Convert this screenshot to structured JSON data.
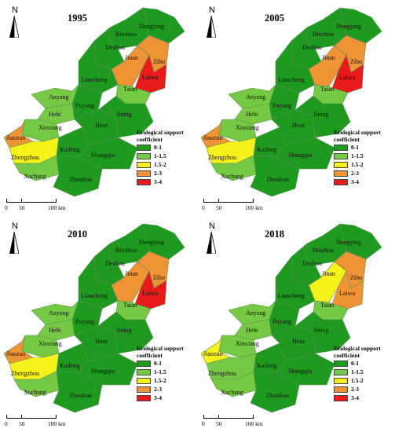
{
  "legend": {
    "title": "Ecological support coefficient",
    "classes": [
      {
        "label": "0-1",
        "color": "#1e9a1e"
      },
      {
        "label": "1-1.5",
        "color": "#76c942"
      },
      {
        "label": "1.5-2",
        "color": "#f7f11a"
      },
      {
        "label": "2-3",
        "color": "#f09334"
      },
      {
        "label": "3-4",
        "color": "#ea1a1a"
      }
    ]
  },
  "north_label": "N",
  "scale": {
    "labels": [
      "0",
      "50",
      "100 km"
    ]
  },
  "cities": [
    "Binzhou",
    "Dongying",
    "Dezhou",
    "Jinan",
    "Zibo",
    "Laiwu",
    "Liaocheng",
    "Taian",
    "Anyang",
    "Hebi",
    "Puyang",
    "Xinxiang",
    "Jiaozuo",
    "Zhengzhou",
    "Kaifeng",
    "Heze",
    "Jining",
    "Shangqiu",
    "Xuchang",
    "Zhoukou"
  ],
  "maps": [
    {
      "year": "1995",
      "labels": {
        "Jiaozuo": "Jiaozuo",
        "Zhengzhou": "Zhengzhou"
      },
      "classes": {
        "Binzhou": 0,
        "Dongying": 0,
        "Dezhou": 0,
        "Jinan": 3,
        "Zibo": 3,
        "Laiwu": 4,
        "Liaocheng": 0,
        "Taian": 1,
        "Anyang": 1,
        "Hebi": 1,
        "Puyang": 0,
        "Xinxiang": 1,
        "Jiaozuo": 3,
        "Zhengzhou": 2,
        "Kaifeng": 0,
        "Heze": 0,
        "Jining": 0,
        "Shangqiu": 0,
        "Xuchang": 1,
        "Zhoukou": 0
      }
    },
    {
      "year": "2005",
      "labels": {
        "Jiaozuo": "Jiaozuo",
        "Zhengzhou": "Zhengzhou"
      },
      "classes": {
        "Binzhou": 0,
        "Dongying": 0,
        "Dezhou": 0,
        "Jinan": 3,
        "Zibo": 3,
        "Laiwu": 4,
        "Liaocheng": 0,
        "Taian": 1,
        "Anyang": 1,
        "Hebi": 1,
        "Puyang": 0,
        "Xinxiang": 1,
        "Jiaozuo": 3,
        "Zhengzhou": 2,
        "Kaifeng": 0,
        "Heze": 0,
        "Jining": 0,
        "Shangqiu": 0,
        "Xuchang": 1,
        "Zhoukou": 0
      }
    },
    {
      "year": "2010",
      "labels": {
        "Jiaozuo": "Jiaozuo",
        "Zhengzhou": "Zhengzhou"
      },
      "classes": {
        "Binzhou": 0,
        "Dongying": 0,
        "Dezhou": 0,
        "Jinan": 3,
        "Zibo": 3,
        "Laiwu": 4,
        "Liaocheng": 0,
        "Taian": 1,
        "Anyang": 1,
        "Hebi": 1,
        "Puyang": 0,
        "Xinxiang": 1,
        "Jiaozuo": 3,
        "Zhengzhou": 2,
        "Kaifeng": 0,
        "Heze": 0,
        "Jining": 0,
        "Shangqiu": 0,
        "Xuchang": 1,
        "Zhoukou": 0
      }
    },
    {
      "year": "2018",
      "labels": {
        "Jiaozuo": "Jiaozuo",
        "Zhengzhou": "Zhengzhou"
      },
      "classes": {
        "Binzhou": 0,
        "Dongying": 0,
        "Dezhou": 0,
        "Jinan": 2,
        "Zibo": 3,
        "Laiwu": 3,
        "Liaocheng": 0,
        "Taian": 1,
        "Anyang": 1,
        "Hebi": 1,
        "Puyang": 0,
        "Xinxiang": 1,
        "Jiaozuo": 2,
        "Zhengzhou": 1,
        "Kaifeng": 0,
        "Heze": 0,
        "Jining": 0,
        "Shangqiu": 0,
        "Xuchang": 1,
        "Zhoukou": 0
      }
    }
  ]
}
